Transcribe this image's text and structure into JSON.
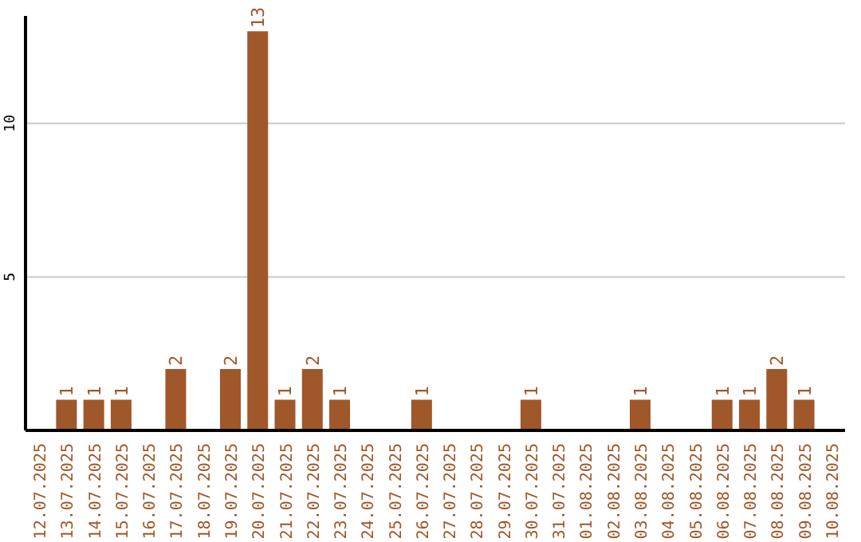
{
  "chart_data": {
    "type": "bar",
    "categories": [
      "12.07.2025",
      "13.07.2025",
      "14.07.2025",
      "15.07.2025",
      "16.07.2025",
      "17.07.2025",
      "18.07.2025",
      "19.07.2025",
      "20.07.2025",
      "21.07.2025",
      "22.07.2025",
      "23.07.2025",
      "24.07.2025",
      "25.07.2025",
      "26.07.2025",
      "27.07.2025",
      "28.07.2025",
      "29.07.2025",
      "30.07.2025",
      "31.07.2025",
      "01.08.2025",
      "02.08.2025",
      "03.08.2025",
      "04.08.2025",
      "05.08.2025",
      "06.08.2025",
      "07.08.2025",
      "08.08.2025",
      "09.08.2025",
      "10.08.2025"
    ],
    "values": [
      0,
      1,
      1,
      1,
      0,
      2,
      0,
      2,
      13,
      1,
      2,
      1,
      0,
      0,
      1,
      0,
      0,
      0,
      1,
      0,
      0,
      0,
      1,
      0,
      0,
      1,
      1,
      2,
      1,
      0
    ],
    "value_labels": [
      null,
      "1",
      "1",
      "1",
      null,
      "2",
      null,
      "2",
      "13",
      "1",
      "2",
      "1",
      null,
      null,
      "1",
      null,
      null,
      null,
      "1",
      null,
      null,
      null,
      "1",
      null,
      null,
      "1",
      "1",
      "2",
      "1",
      null
    ],
    "color": "#a0572a",
    "ylim": [
      0,
      13.5
    ],
    "yticks": [
      5,
      10
    ],
    "grid": "y"
  }
}
